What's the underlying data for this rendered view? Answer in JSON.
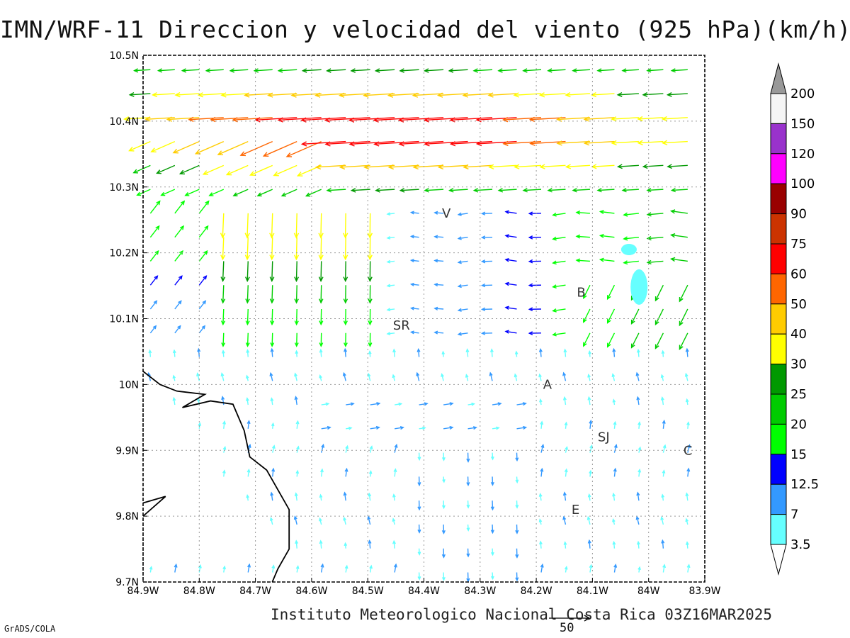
{
  "title": "IMN/WRF-11 Direccion y velocidad del viento (925 hPa)(km/h)",
  "footer": "Instituto Meteorologico Nacional Costa Rica 03Z16MAR2025",
  "credit": "GrADS/COLA",
  "reference_vector_label": "50",
  "axes": {
    "x_ticks": [
      "84.9W",
      "84.8W",
      "84.7W",
      "84.6W",
      "84.5W",
      "84.4W",
      "84.3W",
      "84.2W",
      "84.1W",
      "84W",
      "83.9W"
    ],
    "y_ticks": [
      "10.5N",
      "10.4N",
      "10.3N",
      "10.2N",
      "10.1N",
      "10N",
      "9.9N",
      "9.8N",
      "9.7N"
    ]
  },
  "places": [
    {
      "label": "V",
      "lon": -84.36,
      "lat": 10.26
    },
    {
      "label": "B",
      "lon": -84.12,
      "lat": 10.14
    },
    {
      "label": "SR",
      "lon": -84.44,
      "lat": 10.09
    },
    {
      "label": "A",
      "lon": -84.18,
      "lat": 10.0
    },
    {
      "label": "SJ",
      "lon": -84.08,
      "lat": 9.92
    },
    {
      "label": "C",
      "lon": -83.93,
      "lat": 9.9
    },
    {
      "label": "E",
      "lon": -84.13,
      "lat": 9.81
    }
  ],
  "colorbar": {
    "labels": [
      "200",
      "150",
      "120",
      "100",
      "90",
      "75",
      "60",
      "50",
      "40",
      "30",
      "25",
      "20",
      "15",
      "12.5",
      "7",
      "3.5"
    ],
    "colors": [
      "#f5f5f5",
      "#9932cc",
      "#ff00ff",
      "#990000",
      "#cc3300",
      "#ff0000",
      "#ff6600",
      "#ffcc00",
      "#ffff00",
      "#009900",
      "#00cc00",
      "#00ff00",
      "#0000ff",
      "#3399ff",
      "#66ffff"
    ],
    "over_color": "#999999",
    "under_color": "#ffffff"
  },
  "colors": {
    "coast": "#000000",
    "grid": "#999999",
    "calm_patch": "#66ffff"
  }
}
